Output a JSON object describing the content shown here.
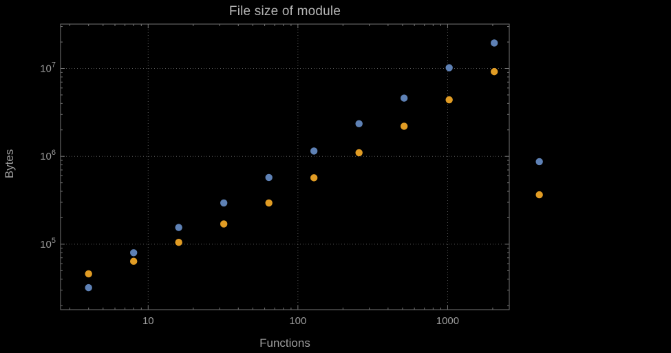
{
  "chart_data": {
    "type": "scatter",
    "title": "File size of module",
    "xlabel": "Functions",
    "ylabel": "Bytes",
    "x_scale": "log",
    "y_scale": "log",
    "grid": "dotted",
    "legend": "none",
    "x_range": [
      2.6,
      2580
    ],
    "y_range": [
      18000,
      32000000
    ],
    "x_ticks": [
      10,
      100,
      1000
    ],
    "x_tick_labels": [
      "10",
      "100",
      "1000"
    ],
    "y_ticks": [
      100000,
      1000000,
      10000000
    ],
    "y_tick_labels": [
      "10^5",
      "10^6",
      "10^7"
    ],
    "y_tick_exponents": [
      "5",
      "6",
      "7"
    ],
    "x": [
      4,
      8,
      16,
      32,
      64,
      128,
      256,
      512,
      1024,
      2048,
      4096
    ],
    "series": [
      {
        "name": "blue",
        "color": "#5e81b5",
        "values": [
          32000,
          80000,
          155000,
          295000,
          575000,
          1150000,
          2350000,
          4600000,
          10200000,
          19500000,
          870000
        ]
      },
      {
        "name": "orange",
        "color": "#e19c24",
        "values": [
          46000,
          64000,
          105000,
          170000,
          295000,
          570000,
          1100000,
          2200000,
          4400000,
          9200000,
          365000
        ]
      }
    ],
    "style": {
      "frame_color": "#767676",
      "grid_color": "#5a5a5a",
      "label_color": "#9d9d9d"
    }
  }
}
